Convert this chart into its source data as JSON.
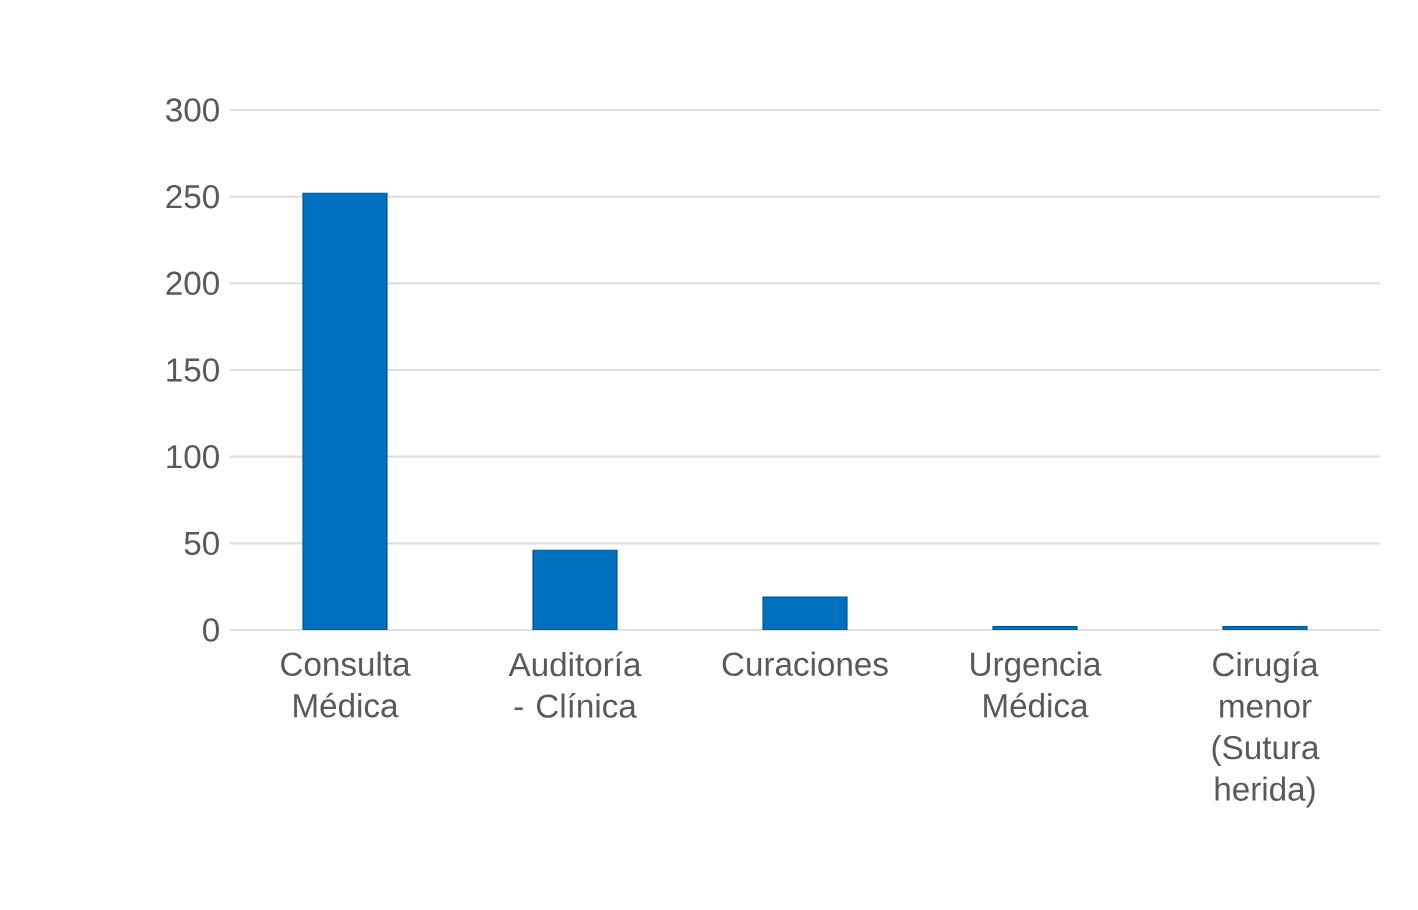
{
  "chart_data": {
    "type": "bar",
    "categories": [
      "Consulta Médica",
      "Auditoría - Clínica",
      "Curaciones",
      "Urgencia Médica",
      "Cirugía menor (Sutura herida)"
    ],
    "values": [
      252,
      46,
      19,
      2,
      2
    ],
    "color": "#0070c0",
    "ylim": [
      0,
      300
    ],
    "yticks": [
      0,
      50,
      100,
      150,
      200,
      250,
      300
    ],
    "grid": "y"
  }
}
